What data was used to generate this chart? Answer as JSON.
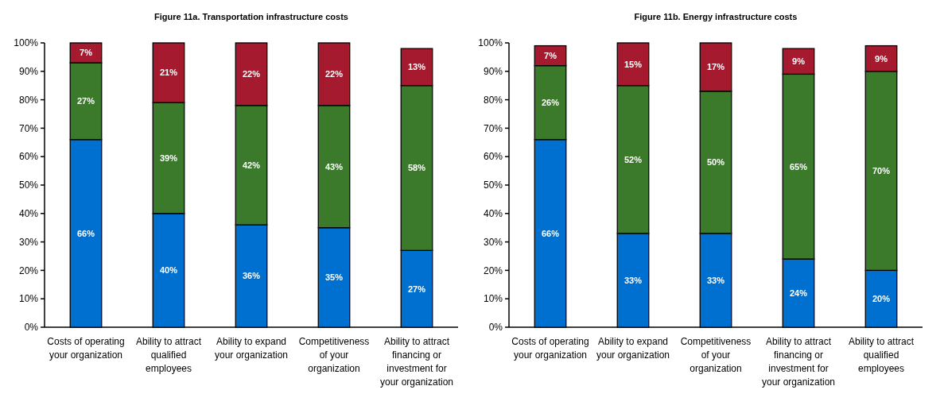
{
  "chart_data": [
    {
      "type": "bar",
      "title": "Figure 11a. Transportation infrastructure costs",
      "stacked": true,
      "grid": false,
      "categories": [
        "Costs of operating your organization",
        "Ability to attract qualified employees",
        "Ability to expand your organization",
        "Competitiveness of your organization",
        "Ability to attract financing  or investment for your organization"
      ],
      "ylim": [
        0,
        100
      ],
      "yticks": [
        {
          "value": 0,
          "label": "0%"
        },
        {
          "value": 10,
          "label": "10%"
        },
        {
          "value": 20,
          "label": "20%"
        },
        {
          "value": 30,
          "label": "30%"
        },
        {
          "value": 40,
          "label": "40%"
        },
        {
          "value": 50,
          "label": "50%"
        },
        {
          "value": 60,
          "label": "60%"
        },
        {
          "value": 70,
          "label": "70%"
        },
        {
          "value": 80,
          "label": "80%"
        },
        {
          "value": 90,
          "label": "90%"
        },
        {
          "value": 100,
          "label": "100%"
        }
      ],
      "series": [
        {
          "color": "#0070d0",
          "values": [
            66,
            40,
            36,
            35,
            27
          ],
          "value_labels": [
            "66%",
            "40%",
            "36%",
            "35%",
            "27%"
          ]
        },
        {
          "color": "#3a7a2a",
          "values": [
            27,
            39,
            42,
            43,
            58
          ],
          "value_labels": [
            "27%",
            "39%",
            "42%",
            "43%",
            "58%"
          ]
        },
        {
          "color": "#a51a2e",
          "values": [
            7,
            21,
            22,
            22,
            13
          ],
          "value_labels": [
            "7%",
            "21%",
            "22%",
            "22%",
            "13%"
          ]
        }
      ]
    },
    {
      "type": "bar",
      "title": "Figure 11b. Energy infrastructure costs",
      "stacked": true,
      "grid": false,
      "categories": [
        "Costs of operating your organization",
        "Ability to expand your organization",
        "Competitiveness of your organization",
        "Ability to attract financing or investment for your organization",
        "Ability to attract qualified employees"
      ],
      "ylim": [
        0,
        100
      ],
      "yticks": [
        {
          "value": 0,
          "label": "0%"
        },
        {
          "value": 10,
          "label": "10%"
        },
        {
          "value": 20,
          "label": "20%"
        },
        {
          "value": 30,
          "label": "30%"
        },
        {
          "value": 40,
          "label": "40%"
        },
        {
          "value": 50,
          "label": "50%"
        },
        {
          "value": 60,
          "label": "60%"
        },
        {
          "value": 70,
          "label": "70%"
        },
        {
          "value": 80,
          "label": "80%"
        },
        {
          "value": 90,
          "label": "90%"
        },
        {
          "value": 100,
          "label": "100%"
        }
      ],
      "series": [
        {
          "color": "#0070d0",
          "values": [
            66,
            33,
            33,
            24,
            20
          ],
          "value_labels": [
            "66%",
            "33%",
            "33%",
            "24%",
            "20%"
          ]
        },
        {
          "color": "#3a7a2a",
          "values": [
            26,
            52,
            50,
            65,
            70
          ],
          "value_labels": [
            "26%",
            "52%",
            "50%",
            "65%",
            "70%"
          ]
        },
        {
          "color": "#a51a2e",
          "values": [
            7,
            15,
            17,
            9,
            9
          ],
          "value_labels": [
            "7%",
            "15%",
            "17%",
            "9%",
            "9%"
          ]
        }
      ]
    }
  ]
}
